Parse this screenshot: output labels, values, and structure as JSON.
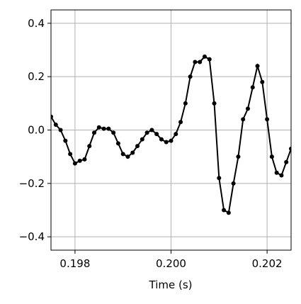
{
  "chart_data": {
    "type": "line",
    "xlabel": "Time (s)",
    "x": [
      0.1975,
      0.1976,
      0.1977,
      0.1978,
      0.1979,
      0.198,
      0.1981,
      0.1982,
      0.1983,
      0.1984,
      0.1985,
      0.1986,
      0.1987,
      0.1988,
      0.1989,
      0.199,
      0.1991,
      0.1992,
      0.1993,
      0.1994,
      0.1995,
      0.1996,
      0.1997,
      0.1998,
      0.1999,
      0.2,
      0.2001,
      0.2002,
      0.2003,
      0.2004,
      0.2005,
      0.2006,
      0.2007,
      0.2008,
      0.2009,
      0.201,
      0.2011,
      0.2012,
      0.2013,
      0.2014,
      0.2015,
      0.2016,
      0.2017,
      0.2018,
      0.2019,
      0.202,
      0.2021,
      0.2022,
      0.2023,
      0.2024,
      0.2025
    ],
    "series": [
      {
        "color": "#000000",
        "values": [
          0.05,
          0.02,
          0.0,
          -0.04,
          -0.09,
          -0.125,
          -0.115,
          -0.11,
          -0.06,
          -0.01,
          0.01,
          0.005,
          0.005,
          -0.01,
          -0.05,
          -0.09,
          -0.1,
          -0.085,
          -0.06,
          -0.035,
          -0.01,
          0.0,
          -0.015,
          -0.035,
          -0.045,
          -0.04,
          -0.015,
          0.03,
          0.1,
          0.2,
          0.255,
          0.255,
          0.275,
          0.265,
          0.1,
          -0.18,
          -0.3,
          -0.31,
          -0.2,
          -0.1,
          0.04,
          0.08,
          0.16,
          0.24,
          0.18,
          0.04,
          -0.1,
          -0.16,
          -0.17,
          -0.12,
          -0.07
        ]
      }
    ],
    "xlim": [
      0.1975,
      0.2025
    ],
    "ylim": [
      -0.45,
      0.45
    ],
    "xticks": [
      0.198,
      {
        "value": 0.2,
        "label": "0.200"
      },
      0.202
    ],
    "yticks": [
      {
        "value": -0.4,
        "label": "−0.4"
      },
      {
        "value": -0.2,
        "label": "−0.2"
      },
      {
        "value": 0,
        "label": "0.0"
      },
      {
        "value": 0.2,
        "label": "0.2"
      },
      {
        "value": 0.4,
        "label": "0.4"
      }
    ],
    "grid": true
  }
}
